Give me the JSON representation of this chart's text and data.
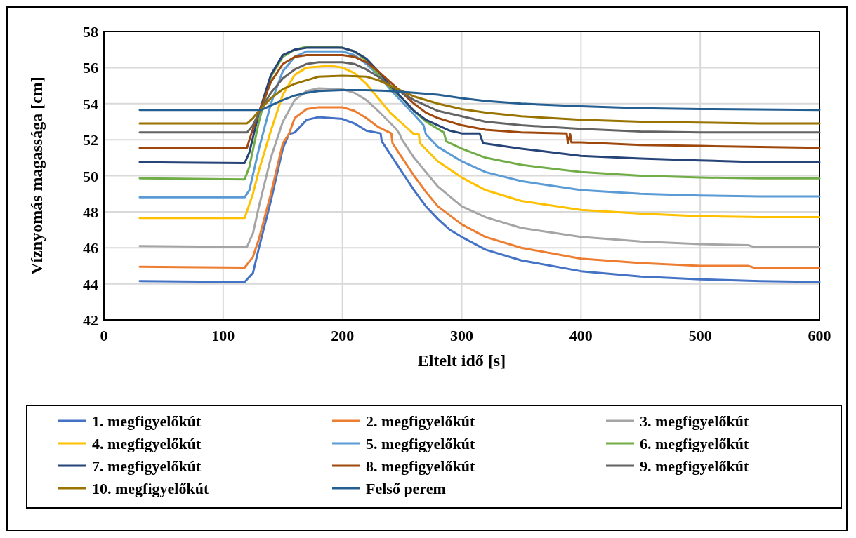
{
  "chart_data": {
    "type": "line",
    "xlabel": "Eltelt idő [s]",
    "ylabel": "Víznyomás magassága [cm]",
    "xlim": [
      0,
      600
    ],
    "xticks": [
      0,
      100,
      200,
      300,
      400,
      500,
      600
    ],
    "ylim": [
      42,
      58
    ],
    "yticks": [
      42,
      44,
      46,
      48,
      50,
      52,
      54,
      56,
      58
    ],
    "grid": true,
    "legend": "bottom",
    "marker": "none",
    "line_style": "solid",
    "series": [
      {
        "name": "1. megfigyelőkút",
        "color": "#4472c4",
        "x": [
          30,
          118,
          125,
          130,
          140,
          150,
          155,
          160,
          170,
          180,
          200,
          210,
          220,
          232,
          233,
          240,
          250,
          260,
          270,
          280,
          290,
          300,
          320,
          350,
          400,
          450,
          500,
          550,
          600
        ],
        "values": [
          44.15,
          44.1,
          44.6,
          46,
          48.6,
          51.5,
          52.3,
          52.4,
          53.1,
          53.25,
          53.15,
          52.9,
          52.5,
          52.35,
          51.9,
          51.2,
          50.2,
          49.2,
          48.3,
          47.6,
          47,
          46.6,
          45.9,
          45.3,
          44.7,
          44.4,
          44.25,
          44.15,
          44.1
        ]
      },
      {
        "name": "2. megfigyelőkút",
        "color": "#ed7d31",
        "x": [
          30,
          118,
          125,
          130,
          140,
          150,
          155,
          160,
          170,
          180,
          200,
          210,
          220,
          230,
          241,
          242,
          250,
          260,
          270,
          280,
          300,
          320,
          350,
          400,
          450,
          500,
          540,
          545,
          600
        ],
        "values": [
          44.95,
          44.9,
          45.5,
          46.5,
          49,
          51.8,
          52.3,
          53.2,
          53.7,
          53.8,
          53.8,
          53.6,
          53.2,
          52.7,
          52.35,
          51.8,
          51,
          50,
          49.1,
          48.3,
          47.3,
          46.6,
          46,
          45.4,
          45.15,
          45,
          45,
          44.9,
          44.9
        ]
      },
      {
        "name": "3. megfigyelőkút",
        "color": "#a5a5a5",
        "x": [
          30,
          120,
          125,
          130,
          140,
          150,
          160,
          170,
          180,
          200,
          210,
          220,
          230,
          245,
          248,
          250,
          260,
          280,
          300,
          320,
          350,
          400,
          450,
          500,
          540,
          545,
          600
        ],
        "values": [
          46.1,
          46.05,
          46.8,
          48.3,
          51,
          53,
          54.2,
          54.7,
          54.85,
          54.8,
          54.6,
          54.2,
          53.6,
          52.6,
          52.3,
          52,
          51,
          49.4,
          48.3,
          47.7,
          47.1,
          46.6,
          46.35,
          46.2,
          46.15,
          46.05,
          46.05
        ]
      },
      {
        "name": "4. megfigyelőkút",
        "color": "#ffc000",
        "x": [
          30,
          118,
          125,
          130,
          140,
          150,
          160,
          170,
          190,
          200,
          210,
          220,
          230,
          240,
          250,
          260,
          264,
          265,
          280,
          300,
          320,
          350,
          400,
          450,
          500,
          550,
          600
        ],
        "values": [
          47.65,
          47.65,
          49,
          50.3,
          52.5,
          54.5,
          55.6,
          56,
          56.1,
          56,
          55.7,
          55.1,
          54.3,
          53.5,
          52.9,
          52.3,
          52.3,
          51.8,
          50.8,
          49.9,
          49.2,
          48.6,
          48.1,
          47.9,
          47.75,
          47.7,
          47.7
        ]
      },
      {
        "name": "5. megfigyelőkút",
        "color": "#5b9bd5",
        "x": [
          30,
          118,
          122,
          130,
          140,
          150,
          160,
          170,
          200,
          210,
          220,
          230,
          240,
          250,
          260,
          268,
          270,
          280,
          300,
          320,
          350,
          400,
          450,
          500,
          550,
          600
        ],
        "values": [
          48.8,
          48.8,
          49.2,
          51.5,
          54,
          55.8,
          56.6,
          56.9,
          56.9,
          56.7,
          56.2,
          55.6,
          54.8,
          54.1,
          53.4,
          52.8,
          52.3,
          51.6,
          50.8,
          50.2,
          49.7,
          49.2,
          49,
          48.9,
          48.85,
          48.85
        ]
      },
      {
        "name": "6. megfigyelőkút",
        "color": "#70ad47",
        "x": [
          30,
          118,
          122,
          130,
          140,
          150,
          160,
          170,
          190,
          200,
          210,
          220,
          230,
          240,
          250,
          260,
          270,
          285,
          287,
          300,
          320,
          350,
          400,
          450,
          500,
          550,
          600
        ],
        "values": [
          49.85,
          49.8,
          50.5,
          53,
          55.5,
          56.6,
          57,
          57.15,
          57.15,
          57.1,
          56.9,
          56.4,
          55.6,
          54.9,
          54.3,
          53.6,
          53,
          52.4,
          51.9,
          51.5,
          51,
          50.6,
          50.2,
          50,
          49.9,
          49.85,
          49.85
        ]
      },
      {
        "name": "7. megfigyelőkút",
        "color": "#264478",
        "x": [
          30,
          118,
          122,
          130,
          140,
          150,
          160,
          170,
          200,
          210,
          220,
          230,
          240,
          250,
          260,
          270,
          280,
          290,
          300,
          315,
          318,
          350,
          400,
          450,
          500,
          550,
          600
        ],
        "values": [
          50.75,
          50.7,
          51.3,
          53.5,
          55.6,
          56.7,
          57,
          57.1,
          57.1,
          56.9,
          56.5,
          55.8,
          55,
          54.3,
          53.6,
          53.1,
          52.8,
          52.5,
          52.35,
          52.35,
          51.8,
          51.5,
          51.1,
          50.95,
          50.85,
          50.75,
          50.75
        ]
      },
      {
        "name": "8. megfigyelőkút",
        "color": "#9e480e",
        "x": [
          30,
          120,
          122,
          125,
          130,
          140,
          150,
          160,
          170,
          200,
          210,
          220,
          230,
          240,
          250,
          260,
          270,
          280,
          300,
          320,
          350,
          388,
          389,
          391,
          392,
          400,
          450,
          500,
          550,
          600
        ],
        "values": [
          51.55,
          51.55,
          52,
          52.6,
          53.5,
          55.2,
          56.2,
          56.6,
          56.7,
          56.7,
          56.6,
          56.3,
          55.8,
          55.2,
          54.6,
          54,
          53.5,
          53.2,
          52.8,
          52.55,
          52.4,
          52.35,
          51.8,
          52.3,
          51.85,
          51.85,
          51.7,
          51.65,
          51.6,
          51.55
        ]
      },
      {
        "name": "9. megfigyelőkút",
        "color": "#636363",
        "x": [
          30,
          120,
          125,
          130,
          140,
          150,
          160,
          170,
          180,
          200,
          210,
          220,
          230,
          240,
          250,
          260,
          280,
          300,
          320,
          350,
          400,
          450,
          500,
          550,
          600
        ],
        "values": [
          52.4,
          52.4,
          52.8,
          53.5,
          54.6,
          55.4,
          55.9,
          56.2,
          56.3,
          56.3,
          56.2,
          55.9,
          55.5,
          55,
          54.6,
          54.2,
          53.6,
          53.3,
          53,
          52.8,
          52.6,
          52.45,
          52.4,
          52.4,
          52.4
        ]
      },
      {
        "name": "10. megfigyelőkút",
        "color": "#997300",
        "x": [
          30,
          120,
          125,
          130,
          140,
          150,
          160,
          170,
          180,
          200,
          220,
          230,
          240,
          250,
          260,
          280,
          300,
          320,
          350,
          400,
          450,
          500,
          550,
          600
        ],
        "values": [
          52.9,
          52.9,
          53.2,
          53.6,
          54.3,
          54.8,
          55.1,
          55.3,
          55.5,
          55.55,
          55.5,
          55.3,
          55,
          54.7,
          54.4,
          54,
          53.7,
          53.5,
          53.3,
          53.1,
          53,
          52.95,
          52.9,
          52.9
        ]
      },
      {
        "name": "Felső perem",
        "color": "#255e91",
        "x": [
          30,
          132,
          140,
          150,
          160,
          170,
          180,
          200,
          220,
          240,
          260,
          280,
          300,
          320,
          350,
          400,
          450,
          500,
          600
        ],
        "values": [
          53.65,
          53.65,
          53.9,
          54.2,
          54.45,
          54.6,
          54.7,
          54.75,
          54.75,
          54.7,
          54.6,
          54.5,
          54.3,
          54.15,
          54,
          53.85,
          53.75,
          53.7,
          53.65
        ]
      }
    ]
  }
}
